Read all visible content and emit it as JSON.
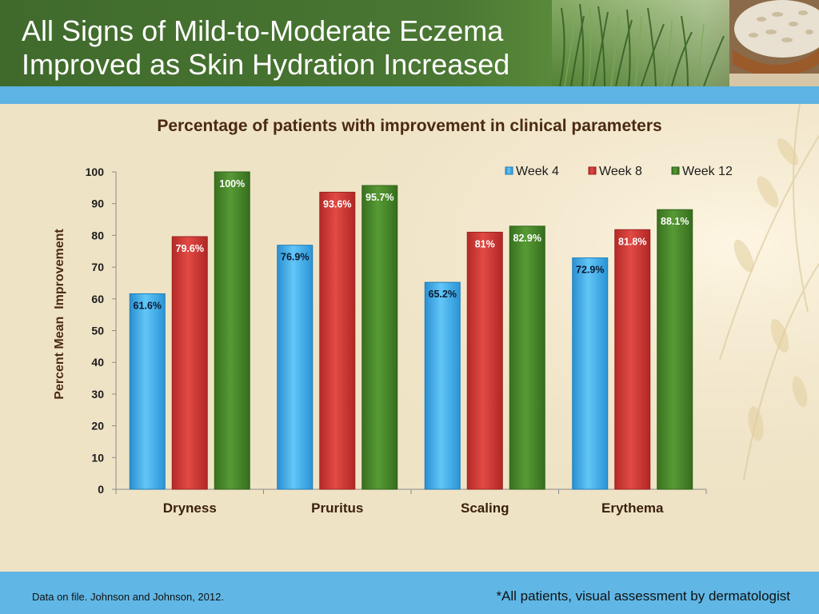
{
  "slide": {
    "title_line1": "All Signs of Mild-to-Moderate Eczema",
    "title_line2": "Improved as Skin Hydration Increased",
    "footer_source": "Data on file. Johnson and Johnson, 2012.",
    "footer_note": "*All patients, visual assessment by dermatologist"
  },
  "colors": {
    "header_green": "#3f6a2c",
    "band_blue": "#5db3e3",
    "week4": "#4cb8ee",
    "week8": "#d53a36",
    "week12": "#4a8a2c",
    "label_dark": "#0b1a33",
    "label_light": "#ffffff"
  },
  "chart_data": {
    "type": "bar",
    "title": "Percentage of patients with improvement in clinical parameters",
    "xlabel": "",
    "ylabel": "Percent Mean  Improvement",
    "ylim": [
      0,
      100
    ],
    "yticks": [
      "0",
      "10",
      "20",
      "30",
      "40",
      "50",
      "60",
      "70",
      "80",
      "90",
      "100"
    ],
    "categories": [
      "Dryness",
      "Pruritus",
      "Scaling",
      "Erythema"
    ],
    "legend_position": "top-right",
    "grid": false,
    "series": [
      {
        "name": "Week 4",
        "values": [
          61.6,
          76.9,
          65.2,
          72.9
        ],
        "labels": [
          "61.6%",
          "76.9%",
          "65.2%",
          "72.9%"
        ]
      },
      {
        "name": "Week 8",
        "values": [
          79.6,
          93.6,
          81,
          81.8
        ],
        "labels": [
          "79.6%",
          "93.6%",
          "81%",
          "81.8%"
        ]
      },
      {
        "name": "Week 12",
        "values": [
          100,
          95.7,
          82.9,
          88.1
        ],
        "labels": [
          "100%",
          "95.7%",
          "82.9%",
          "88.1%"
        ]
      }
    ]
  }
}
